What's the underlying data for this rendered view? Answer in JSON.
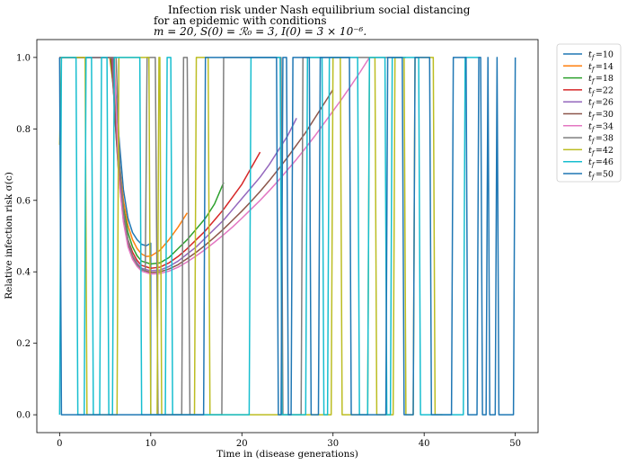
{
  "chart_data": {
    "type": "line",
    "title_lines": [
      "Infection risk under Nash equilibrium social distancing",
      "for an epidemic with conditions",
      "m = 20, S(0) = ℛ₀ = 3, I(0) = 3 × 10⁻⁶."
    ],
    "xlabel": "Time in (disease generations)",
    "ylabel": "Relative infection risk σ(c)",
    "xlim": [
      -2.5,
      52.5
    ],
    "ylim": [
      -0.05,
      1.05
    ],
    "xticks": [
      0,
      10,
      20,
      30,
      40,
      50
    ],
    "xtick_labels": [
      "0",
      "10",
      "20",
      "30",
      "40",
      "50"
    ],
    "yticks": [
      0.0,
      0.2,
      0.4,
      0.6,
      0.8,
      1.0
    ],
    "ytick_labels": [
      "0.0",
      "0.2",
      "0.4",
      "0.6",
      "0.8",
      "1.0"
    ],
    "grid": false,
    "legend_position": "outside-right",
    "series": [
      {
        "name": "t_f =10",
        "label_sub": "f",
        "label_val": "=10",
        "color": "#1f77b4",
        "points": [
          [
            0,
            1
          ],
          [
            4.5,
            1
          ],
          [
            5.5,
            1
          ],
          [
            6,
            0.96
          ],
          [
            6.5,
            0.78
          ],
          [
            7,
            0.63
          ],
          [
            7.5,
            0.55
          ],
          [
            8,
            0.51
          ],
          [
            8.5,
            0.49
          ],
          [
            9,
            0.477
          ],
          [
            9.5,
            0.473
          ],
          [
            10,
            0.48
          ],
          [
            10,
            0
          ]
        ]
      },
      {
        "name": "t_f =14",
        "label_sub": "f",
        "label_val": "=14",
        "color": "#ff7f0e",
        "points": [
          [
            0,
            1
          ],
          [
            5.5,
            1
          ],
          [
            6,
            0.9
          ],
          [
            6.5,
            0.72
          ],
          [
            7,
            0.6
          ],
          [
            7.5,
            0.53
          ],
          [
            8,
            0.49
          ],
          [
            8.5,
            0.465
          ],
          [
            9,
            0.45
          ],
          [
            9.5,
            0.443
          ],
          [
            10,
            0.444
          ],
          [
            11,
            0.46
          ],
          [
            12,
            0.49
          ],
          [
            13,
            0.525
          ],
          [
            14,
            0.565
          ]
        ]
      },
      {
        "name": "t_f =18",
        "label_sub": "f",
        "label_val": "=18",
        "color": "#2ca02c",
        "points": [
          [
            0,
            1
          ],
          [
            5.6,
            1
          ],
          [
            6,
            0.88
          ],
          [
            6.5,
            0.7
          ],
          [
            7,
            0.58
          ],
          [
            7.5,
            0.51
          ],
          [
            8,
            0.47
          ],
          [
            8.5,
            0.445
          ],
          [
            9,
            0.43
          ],
          [
            10,
            0.422
          ],
          [
            11,
            0.425
          ],
          [
            12,
            0.44
          ],
          [
            13,
            0.465
          ],
          [
            14,
            0.49
          ],
          [
            15,
            0.52
          ],
          [
            16,
            0.55
          ],
          [
            17,
            0.59
          ],
          [
            18,
            0.65
          ]
        ]
      },
      {
        "name": "t_f =22",
        "label_sub": "f",
        "label_val": "=22",
        "color": "#d62728",
        "points": [
          [
            0,
            1
          ],
          [
            5.7,
            1
          ],
          [
            6,
            0.87
          ],
          [
            6.5,
            0.68
          ],
          [
            7,
            0.56
          ],
          [
            7.5,
            0.49
          ],
          [
            8,
            0.455
          ],
          [
            8.5,
            0.432
          ],
          [
            9,
            0.418
          ],
          [
            10,
            0.41
          ],
          [
            11,
            0.413
          ],
          [
            12,
            0.425
          ],
          [
            13,
            0.443
          ],
          [
            14,
            0.465
          ],
          [
            15,
            0.49
          ],
          [
            16,
            0.515
          ],
          [
            17,
            0.545
          ],
          [
            18,
            0.575
          ],
          [
            19,
            0.61
          ],
          [
            20,
            0.645
          ],
          [
            21,
            0.69
          ],
          [
            22,
            0.735
          ]
        ]
      },
      {
        "name": "t_f =26",
        "label_sub": "f",
        "label_val": "=26",
        "color": "#9467bd",
        "points": [
          [
            0,
            1
          ],
          [
            5.8,
            1
          ],
          [
            6,
            0.86
          ],
          [
            6.5,
            0.67
          ],
          [
            7,
            0.55
          ],
          [
            7.5,
            0.48
          ],
          [
            8,
            0.445
          ],
          [
            8.5,
            0.425
          ],
          [
            9,
            0.41
          ],
          [
            10,
            0.403
          ],
          [
            11,
            0.405
          ],
          [
            12,
            0.415
          ],
          [
            13,
            0.43
          ],
          [
            14,
            0.45
          ],
          [
            15,
            0.47
          ],
          [
            16,
            0.495
          ],
          [
            17,
            0.52
          ],
          [
            18,
            0.545
          ],
          [
            19,
            0.575
          ],
          [
            20,
            0.605
          ],
          [
            21,
            0.635
          ],
          [
            22,
            0.665
          ],
          [
            23,
            0.7
          ],
          [
            24,
            0.74
          ],
          [
            25,
            0.78
          ],
          [
            26,
            0.83
          ]
        ]
      },
      {
        "name": "t_f =30",
        "label_sub": "f",
        "label_val": "=30",
        "color": "#8c564b",
        "points": [
          [
            0,
            1
          ],
          [
            5.9,
            1
          ],
          [
            6,
            0.86
          ],
          [
            6.5,
            0.665
          ],
          [
            7,
            0.545
          ],
          [
            7.5,
            0.475
          ],
          [
            8,
            0.44
          ],
          [
            8.5,
            0.42
          ],
          [
            9,
            0.406
          ],
          [
            10,
            0.398
          ],
          [
            11,
            0.4
          ],
          [
            12,
            0.408
          ],
          [
            13,
            0.42
          ],
          [
            14,
            0.437
          ],
          [
            15,
            0.455
          ],
          [
            16,
            0.475
          ],
          [
            17,
            0.497
          ],
          [
            18,
            0.52
          ],
          [
            19,
            0.545
          ],
          [
            20,
            0.57
          ],
          [
            21,
            0.597
          ],
          [
            22,
            0.625
          ],
          [
            23,
            0.655
          ],
          [
            24,
            0.687
          ],
          [
            25,
            0.72
          ],
          [
            26,
            0.755
          ],
          [
            27,
            0.79
          ],
          [
            28,
            0.83
          ],
          [
            29,
            0.87
          ],
          [
            30,
            0.91
          ]
        ]
      },
      {
        "name": "t_f =34",
        "label_sub": "f",
        "label_val": "=34",
        "color": "#e377c2",
        "points": [
          [
            0,
            1
          ],
          [
            6,
            1
          ],
          [
            6.5,
            0.66
          ],
          [
            7,
            0.54
          ],
          [
            7.5,
            0.47
          ],
          [
            8,
            0.435
          ],
          [
            8.5,
            0.415
          ],
          [
            9,
            0.402
          ],
          [
            10,
            0.394
          ],
          [
            11,
            0.395
          ],
          [
            12,
            0.402
          ],
          [
            13,
            0.413
          ],
          [
            14,
            0.428
          ],
          [
            15,
            0.445
          ],
          [
            16,
            0.463
          ],
          [
            17,
            0.483
          ],
          [
            18,
            0.504
          ],
          [
            19,
            0.526
          ],
          [
            20,
            0.55
          ],
          [
            21,
            0.575
          ],
          [
            22,
            0.6
          ],
          [
            23,
            0.627
          ],
          [
            24,
            0.655
          ],
          [
            25,
            0.685
          ],
          [
            26,
            0.715
          ],
          [
            27,
            0.747
          ],
          [
            28,
            0.78
          ],
          [
            29,
            0.815
          ],
          [
            30,
            0.85
          ],
          [
            31,
            0.885
          ],
          [
            32,
            0.922
          ],
          [
            33,
            0.96
          ],
          [
            34,
            1.0
          ]
        ]
      },
      {
        "name": "t_f =38",
        "label_sub": "f",
        "label_val": "=38",
        "color": "#7f7f7f",
        "points": [
          [
            0,
            1
          ],
          [
            5.4,
            1
          ],
          [
            5.8,
            1
          ],
          [
            6.2,
            1
          ],
          [
            6.6,
            0.7
          ],
          [
            7,
            0.57
          ],
          [
            7.5,
            0.49
          ],
          [
            8,
            0.445
          ],
          [
            8.5,
            0.42
          ],
          [
            9,
            0.408
          ],
          [
            9.4,
            0.402
          ],
          [
            9.6,
            1
          ],
          [
            10.5,
            1
          ],
          [
            10.8,
            0
          ],
          [
            13.4,
            0
          ],
          [
            13.6,
            1
          ],
          [
            14,
            1
          ],
          [
            14.3,
            0
          ],
          [
            17.8,
            0
          ],
          [
            18,
            1
          ],
          [
            24.3,
            1
          ],
          [
            24.5,
            0
          ],
          [
            26.5,
            0
          ],
          [
            26.7,
            1
          ],
          [
            38,
            1
          ]
        ]
      },
      {
        "name": "t_f =42",
        "label_sub": "f",
        "label_val": "=42",
        "color": "#bcbd22",
        "points": [
          [
            0,
            0.755
          ],
          [
            0.2,
            1
          ],
          [
            2.8,
            1
          ],
          [
            3,
            0
          ],
          [
            6.3,
            0
          ],
          [
            6.5,
            1
          ],
          [
            9.8,
            1
          ],
          [
            10,
            0
          ],
          [
            10.7,
            0
          ],
          [
            10.9,
            1
          ],
          [
            11,
            1
          ],
          [
            11.2,
            0
          ],
          [
            14.8,
            0
          ],
          [
            15,
            1
          ],
          [
            16.3,
            1
          ],
          [
            16.5,
            0
          ],
          [
            29.8,
            0
          ],
          [
            30,
            1
          ],
          [
            30.8,
            1
          ],
          [
            31,
            0
          ],
          [
            33.8,
            0
          ],
          [
            34,
            1
          ],
          [
            34.6,
            1
          ],
          [
            34.8,
            0
          ],
          [
            36.6,
            0
          ],
          [
            36.8,
            1
          ],
          [
            37.8,
            1
          ],
          [
            38,
            0
          ],
          [
            38.8,
            0
          ],
          [
            39,
            1
          ],
          [
            41,
            1
          ],
          [
            41.2,
            0
          ],
          [
            42,
            0
          ]
        ]
      },
      {
        "name": "t_f =46",
        "label_sub": "f",
        "label_val": "=46",
        "color": "#17becf",
        "points": [
          [
            0,
            0
          ],
          [
            0.2,
            1
          ],
          [
            1.8,
            1
          ],
          [
            2,
            0
          ],
          [
            2.7,
            0
          ],
          [
            2.9,
            1
          ],
          [
            3.5,
            1
          ],
          [
            3.7,
            0
          ],
          [
            4.4,
            0
          ],
          [
            4.6,
            1
          ],
          [
            5.2,
            1
          ],
          [
            5.4,
            0
          ],
          [
            5.8,
            0
          ],
          [
            6,
            1
          ],
          [
            8.8,
            1
          ],
          [
            9,
            0
          ],
          [
            11.6,
            0
          ],
          [
            11.8,
            1
          ],
          [
            12.2,
            1
          ],
          [
            12.4,
            0
          ],
          [
            20.8,
            0
          ],
          [
            21,
            1
          ],
          [
            24.2,
            1
          ],
          [
            24.4,
            0
          ],
          [
            27,
            0
          ],
          [
            27.2,
            1
          ],
          [
            28.8,
            1
          ],
          [
            29,
            0
          ],
          [
            29.4,
            0
          ],
          [
            29.6,
            1
          ],
          [
            32.7,
            1
          ],
          [
            32.9,
            0
          ],
          [
            33.8,
            0
          ],
          [
            34,
            1
          ],
          [
            35.7,
            1
          ],
          [
            35.9,
            0
          ],
          [
            36.3,
            0
          ],
          [
            36.5,
            1
          ],
          [
            39.4,
            1
          ],
          [
            39.6,
            0
          ],
          [
            44.3,
            0
          ],
          [
            44.5,
            1
          ],
          [
            46,
            1
          ]
        ]
      },
      {
        "name": "t_f =50",
        "label_sub": "f",
        "label_val": "=50",
        "color": "#1f77b4",
        "points": [
          [
            0,
            1
          ],
          [
            0.2,
            0
          ],
          [
            15.8,
            0
          ],
          [
            16,
            1
          ],
          [
            23.8,
            1
          ],
          [
            24,
            0
          ],
          [
            24.3,
            0
          ],
          [
            24.5,
            1
          ],
          [
            24.9,
            1
          ],
          [
            25.1,
            0
          ],
          [
            25.4,
            0
          ],
          [
            25.6,
            1
          ],
          [
            27.4,
            1
          ],
          [
            27.6,
            0
          ],
          [
            28.4,
            0
          ],
          [
            28.6,
            1
          ],
          [
            31.8,
            1
          ],
          [
            32,
            0
          ],
          [
            35.8,
            0
          ],
          [
            36,
            1
          ],
          [
            37.6,
            1
          ],
          [
            37.8,
            0
          ],
          [
            38.8,
            0
          ],
          [
            39,
            1
          ],
          [
            40.6,
            1
          ],
          [
            40.8,
            0
          ],
          [
            43,
            0
          ],
          [
            43.2,
            1
          ],
          [
            44.6,
            1
          ],
          [
            44.8,
            0
          ],
          [
            45.8,
            0
          ],
          [
            46,
            1
          ],
          [
            46.2,
            1
          ],
          [
            46.4,
            0
          ],
          [
            46.8,
            0
          ],
          [
            47,
            1
          ],
          [
            47.2,
            0
          ],
          [
            47.8,
            0
          ],
          [
            48,
            1
          ],
          [
            48.2,
            0
          ],
          [
            49.8,
            0
          ],
          [
            50,
            1
          ]
        ]
      }
    ]
  }
}
